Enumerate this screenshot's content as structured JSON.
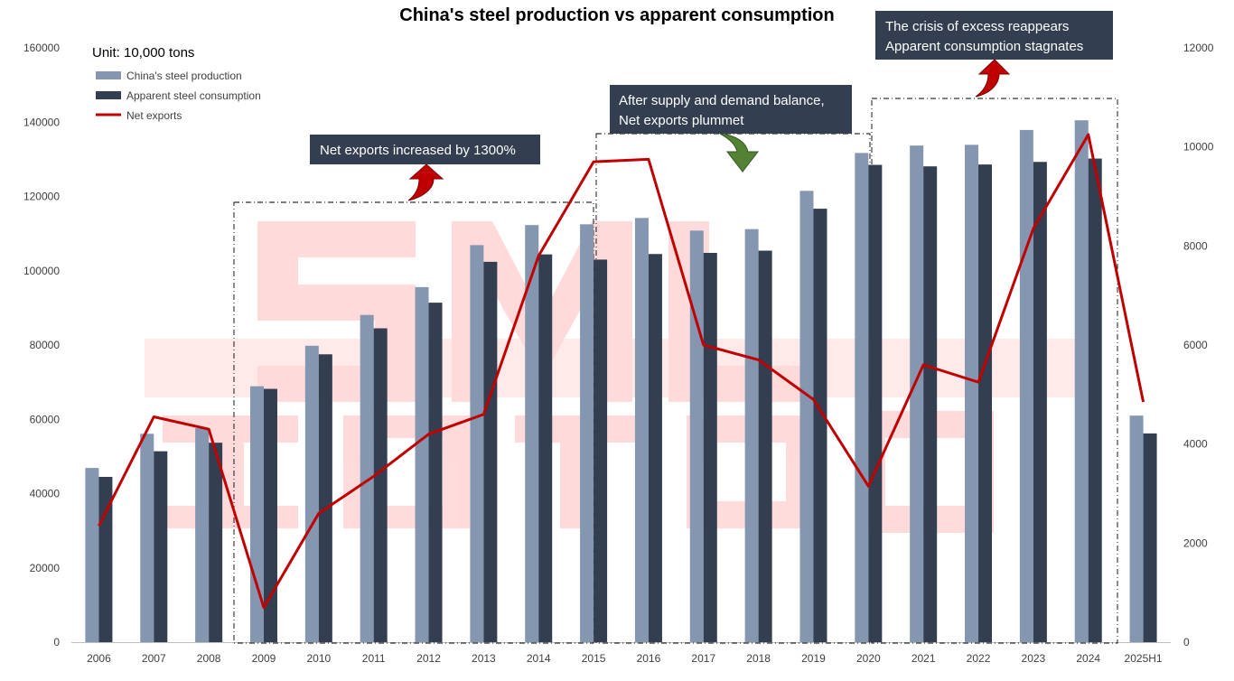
{
  "chart_data": {
    "type": "bar",
    "title": "China's steel production vs apparent consumption",
    "unit_label": "Unit: 10,000 tons",
    "categories": [
      "2006",
      "2007",
      "2008",
      "2009",
      "2010",
      "2011",
      "2012",
      "2013",
      "2014",
      "2015",
      "2016",
      "2017",
      "2018",
      "2019",
      "2020",
      "2021",
      "2022",
      "2023",
      "2024",
      "2025H1"
    ],
    "series": [
      {
        "name": "China's steel production",
        "type": "bar",
        "axis": "left",
        "color": "#8496B0",
        "values": [
          46900,
          56100,
          57600,
          68900,
          79800,
          88100,
          95600,
          106900,
          112300,
          112500,
          114200,
          110800,
          111200,
          121500,
          131700,
          133700,
          133900,
          137900,
          140500,
          61000
        ]
      },
      {
        "name": "Apparent steel consumption",
        "type": "bar",
        "axis": "left",
        "color": "#333F50",
        "values": [
          44500,
          51400,
          53700,
          68200,
          77500,
          84500,
          91400,
          102400,
          104400,
          103000,
          104500,
          104800,
          105400,
          116700,
          128500,
          128100,
          128600,
          129300,
          130200,
          56200
        ]
      },
      {
        "name": "Net exports",
        "type": "line",
        "axis": "right",
        "color": "#C00000",
        "values": [
          2350,
          4550,
          4300,
          700,
          2600,
          3350,
          4200,
          4600,
          7800,
          9700,
          9750,
          6000,
          5700,
          4900,
          3150,
          5600,
          5250,
          8350,
          10250,
          4850
        ]
      }
    ],
    "y_left": {
      "min": 0,
      "max": 160000,
      "ticks": [
        "0",
        "20000",
        "40000",
        "60000",
        "80000",
        "100000",
        "120000",
        "140000",
        "160000"
      ]
    },
    "y_right": {
      "min": 0,
      "max": 12000,
      "ticks": [
        "0",
        "2000",
        "4000",
        "6000",
        "8000",
        "10000",
        "12000"
      ]
    },
    "grid": false,
    "legend_position": "top-left",
    "annotations": [
      {
        "text_lines": [
          "Net exports increased by 1300%"
        ],
        "arrow": "up",
        "arrow_color": "#C00000"
      },
      {
        "text_lines": [
          "After supply and demand balance,",
          "Net exports plummet"
        ],
        "arrow": "down",
        "arrow_color": "#548235"
      },
      {
        "text_lines": [
          "The crisis of excess reappears",
          "Apparent consumption stagnates"
        ],
        "arrow": "up",
        "arrow_color": "#C00000"
      }
    ],
    "annotation_box_color": "#333F50",
    "watermark_color": "#FF0000"
  }
}
